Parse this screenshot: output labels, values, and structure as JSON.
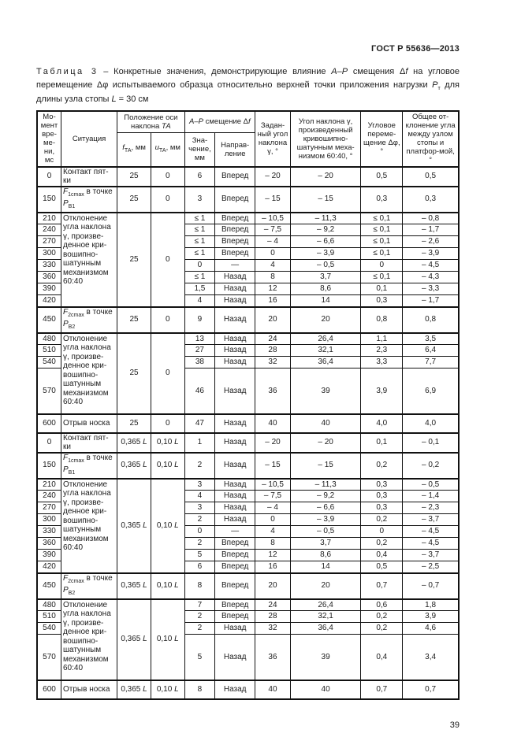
{
  "page": {
    "standard_ref": "ГОСТ Р 55636—2013",
    "page_number": "39"
  },
  "caption": {
    "label": "Таблица 3",
    "dash": " – ",
    "text": "Конкретные значения, демонстрирующие влияние *А–Р* смещения Δ*f* на угловое перемещение Δφ испытываемого образца относительно верхней точки приложения нагрузки *P*_{т} для длины узла стопы *L* = 30 см"
  },
  "table": {
    "header": {
      "col_time": "Мо-мент вре-ме-ни, мс",
      "col_situation": "Ситуация",
      "grp_axis": "Положение оси наклона *ТА*",
      "col_f": "*f*_{ТА}, мм",
      "col_u": "*u*_{ТА}, мм",
      "grp_ap": "*А–Р* смещение Δ*f*",
      "col_value": "Зна-чение, мм",
      "col_dir": "Направ-ление",
      "col_set_angle": "Задан-ный угол наклона γ, °",
      "col_crank_angle": "Угол наклона γ, произведенный кривошипно-шатунным меха-низмом 60:40, °",
      "col_ang_disp": "Угловое переме-щение Δφ, °",
      "col_total": "Общее от-клонение угла между узлом стопы и платфор-мой, °"
    },
    "halves": [
      {
        "groups": [
          {
            "times": [
              "0"
            ],
            "situation": "Контакт пят-ки",
            "f": "25",
            "u": "0",
            "rows": [
              [
                "6",
                "Вперед",
                "– 20",
                "– 20",
                "0,5",
                "0,5"
              ]
            ]
          },
          {
            "times": [
              "150"
            ],
            "situation": "*F*_{1cmax} в точке *P*_{В1}",
            "f": "25",
            "u": "0",
            "rows": [
              [
                "3",
                "Вперед",
                "– 15",
                "– 15",
                "0,3",
                "0,3"
              ]
            ]
          },
          {
            "times": [
              "210",
              "240",
              "270",
              "300",
              "330",
              "360",
              "390",
              "420"
            ],
            "situation": "Отклонение угла наклона γ, произве-денное кри-вошипно-шатунным механизмом 60:40",
            "f": "25",
            "u": "0",
            "rows": [
              [
                "≤ 1",
                "Вперед",
                "– 10,5",
                "– 11,3",
                "≤ 0,1",
                "– 0,8"
              ],
              [
                "≤ 1",
                "Вперед",
                "– 7,5",
                "– 9,2",
                "≤ 0,1",
                "– 1,7"
              ],
              [
                "≤ 1",
                "Вперед",
                "– 4",
                "– 6,6",
                "≤ 0,1",
                "– 2,6"
              ],
              [
                "≤ 1",
                "Вперед",
                "0",
                "– 3,9",
                "≤ 0,1",
                "– 3,9"
              ],
              [
                "0",
                "—",
                "4",
                "– 0,5",
                "0",
                "– 4,5"
              ],
              [
                "≤ 1",
                "Назад",
                "8",
                "3,7",
                "≤ 0,1",
                "– 4,3"
              ],
              [
                "1,5",
                "Назад",
                "12",
                "8,6",
                "0,1",
                "– 3,3"
              ],
              [
                "4",
                "Назад",
                "16",
                "14",
                "0,3",
                "– 1,7"
              ]
            ]
          },
          {
            "times": [
              "450"
            ],
            "situation": "*F*_{2cmax} в точке *P*_{В2}",
            "f": "25",
            "u": "0",
            "rows": [
              [
                "9",
                "Назад",
                "20",
                "20",
                "0,8",
                "0,8"
              ]
            ]
          },
          {
            "times": [
              "480",
              "510",
              "540",
              "570"
            ],
            "situation": "Отклонение угла наклона γ, произве-денное кри-вошипно-шатунным механизмом 60:40",
            "f": "25",
            "u": "0",
            "rows": [
              [
                "13",
                "Назад",
                "24",
                "26,4",
                "1,1",
                "3,5"
              ],
              [
                "27",
                "Назад",
                "28",
                "32,1",
                "2,3",
                "6,4"
              ],
              [
                "38",
                "Назад",
                "32",
                "36,4",
                "3,3",
                "7,7"
              ],
              [
                "46",
                "Назад",
                "36",
                "39",
                "3,9",
                "6,9"
              ]
            ]
          },
          {
            "times": [
              "600"
            ],
            "situation": "Отрыв носка",
            "f": "25",
            "u": "0",
            "rows": [
              [
                "47",
                "Назад",
                "40",
                "40",
                "4,0",
                "4,0"
              ]
            ]
          }
        ]
      },
      {
        "groups": [
          {
            "times": [
              "0"
            ],
            "situation": "Контакт пят-ки",
            "f": "0,365 *L*",
            "u": "0,10 *L*",
            "rows": [
              [
                "1",
                "Назад",
                "– 20",
                "– 20",
                "0,1",
                "– 0,1"
              ]
            ]
          },
          {
            "times": [
              "150"
            ],
            "situation": "*F*_{1cmax} в точке *P*_{В1}",
            "f": "0,365 *L*",
            "u": "0,10 *L*",
            "rows": [
              [
                "2",
                "Назад",
                "– 15",
                "– 15",
                "0,2",
                "– 0,2"
              ]
            ]
          },
          {
            "times": [
              "210",
              "240",
              "270",
              "300",
              "330",
              "360",
              "390",
              "420"
            ],
            "situation": "Отклонение угла наклона γ, произве-денное кри-вошипно-шатунным механизмом 60:40",
            "f": "0,365 *L*",
            "u": "0,10 *L*",
            "rows": [
              [
                "3",
                "Назад",
                "– 10,5",
                "– 11,3",
                "0,3",
                "– 0,5"
              ],
              [
                "4",
                "Назад",
                "– 7,5",
                "– 9,2",
                "0,3",
                "– 1,4"
              ],
              [
                "3",
                "Назад",
                "– 4",
                "– 6,6",
                "0,3",
                "– 2,3"
              ],
              [
                "2",
                "Назад",
                "0",
                "– 3,9",
                "0,2",
                "– 3,7"
              ],
              [
                "0",
                "—",
                "4",
                "– 0,5",
                "0",
                "– 4,5"
              ],
              [
                "2",
                "Вперед",
                "8",
                "3,7",
                "0,2",
                "– 4,5"
              ],
              [
                "5",
                "Вперед",
                "12",
                "8,6",
                "0,4",
                "– 3,7"
              ],
              [
                "6",
                "Вперед",
                "16",
                "14",
                "0,5",
                "– 2,5"
              ]
            ]
          },
          {
            "times": [
              "450"
            ],
            "situation": "*F*_{2cmax} в точке *P*_{В2}",
            "f": "0,365 *L*",
            "u": "0,10 *L*",
            "rows": [
              [
                "8",
                "Вперед",
                "20",
                "20",
                "0,7",
                "– 0,7"
              ]
            ]
          },
          {
            "times": [
              "480",
              "510",
              "540",
              "570"
            ],
            "situation": "Отклонение угла наклона γ, произве-денное кри-вошипно-шатунным механизмом 60:40",
            "f": "0,365 *L*",
            "u": "0,10 *L*",
            "rows": [
              [
                "7",
                "Вперед",
                "24",
                "26,4",
                "0,6",
                "1,8"
              ],
              [
                "2",
                "Вперед",
                "28",
                "32,1",
                "0,2",
                "3,9"
              ],
              [
                "2",
                "Назад",
                "32",
                "36,4",
                "0,2",
                "4,6"
              ],
              [
                "5",
                "Назад",
                "36",
                "39",
                "0,4",
                "3,4"
              ]
            ]
          },
          {
            "times": [
              "600"
            ],
            "situation": "Отрыв носка",
            "f": "0,365 *L*",
            "u": "0,10 *L*",
            "rows": [
              [
                "8",
                "Назад",
                "40",
                "40",
                "0,7",
                "0,7"
              ]
            ]
          }
        ]
      }
    ]
  }
}
